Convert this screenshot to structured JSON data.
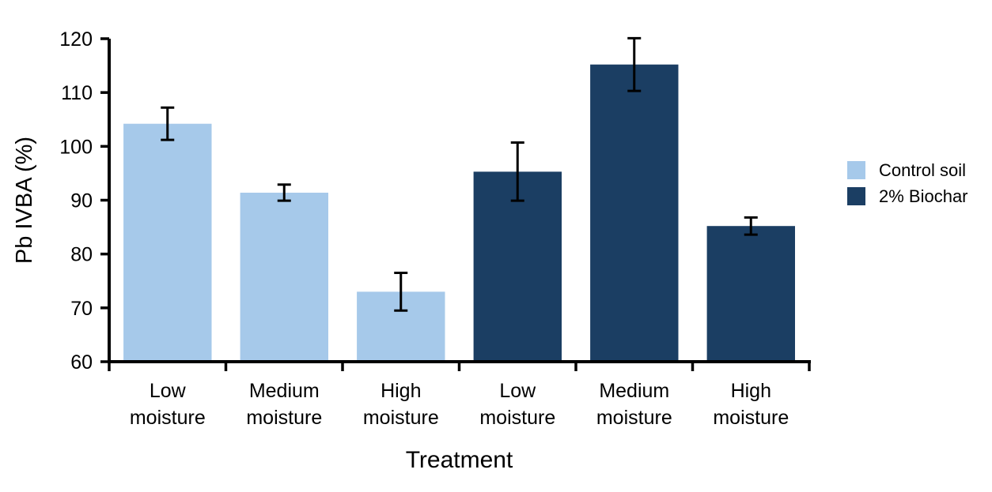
{
  "page": {
    "background": "#ffffff"
  },
  "chart_data": {
    "type": "bar",
    "title": "",
    "xlabel": "Treatment",
    "ylabel": "Pb IVBA (%)",
    "ylim": [
      60,
      120
    ],
    "yticks": [
      60,
      70,
      80,
      90,
      100,
      110,
      120
    ],
    "grid": false,
    "legend_position": "right",
    "categories": [
      "Low moisture",
      "Medium moisture",
      "High moisture",
      "Low moisture",
      "Medium moisture",
      "High moisture"
    ],
    "bars": [
      {
        "category": "Low moisture",
        "group": "Control soil",
        "value": 104.2,
        "error": 3.0
      },
      {
        "category": "Medium moisture",
        "group": "Control soil",
        "value": 91.4,
        "error": 1.5
      },
      {
        "category": "High moisture",
        "group": "Control soil",
        "value": 73.0,
        "error": 3.5
      },
      {
        "category": "Low moisture",
        "group": "2% Biochar",
        "value": 95.3,
        "error": 5.4
      },
      {
        "category": "Medium moisture",
        "group": "2% Biochar",
        "value": 115.2,
        "error": 4.9
      },
      {
        "category": "High moisture",
        "group": "2% Biochar",
        "value": 85.2,
        "error": 1.6
      }
    ],
    "legend": {
      "entries": [
        {
          "label": "Control soil",
          "color": "#a6c9ea"
        },
        {
          "label": "2% Biochar",
          "color": "#1b3e63"
        }
      ]
    },
    "colors": {
      "axis": "#000000",
      "error_bar": "#000000",
      "text": "#000000"
    }
  }
}
